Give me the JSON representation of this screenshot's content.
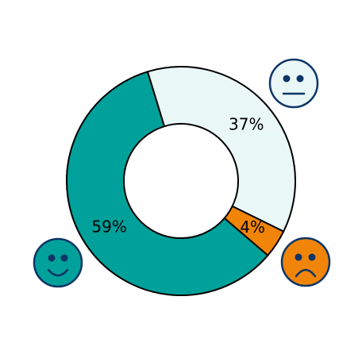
{
  "chart_data": {
    "type": "donut",
    "values": [
      37,
      4,
      59
    ],
    "value_labels": [
      "37%",
      "4%",
      "59%"
    ],
    "colors": [
      "#eaf7f7",
      "#f0850a",
      "#00a19a"
    ]
  }
}
